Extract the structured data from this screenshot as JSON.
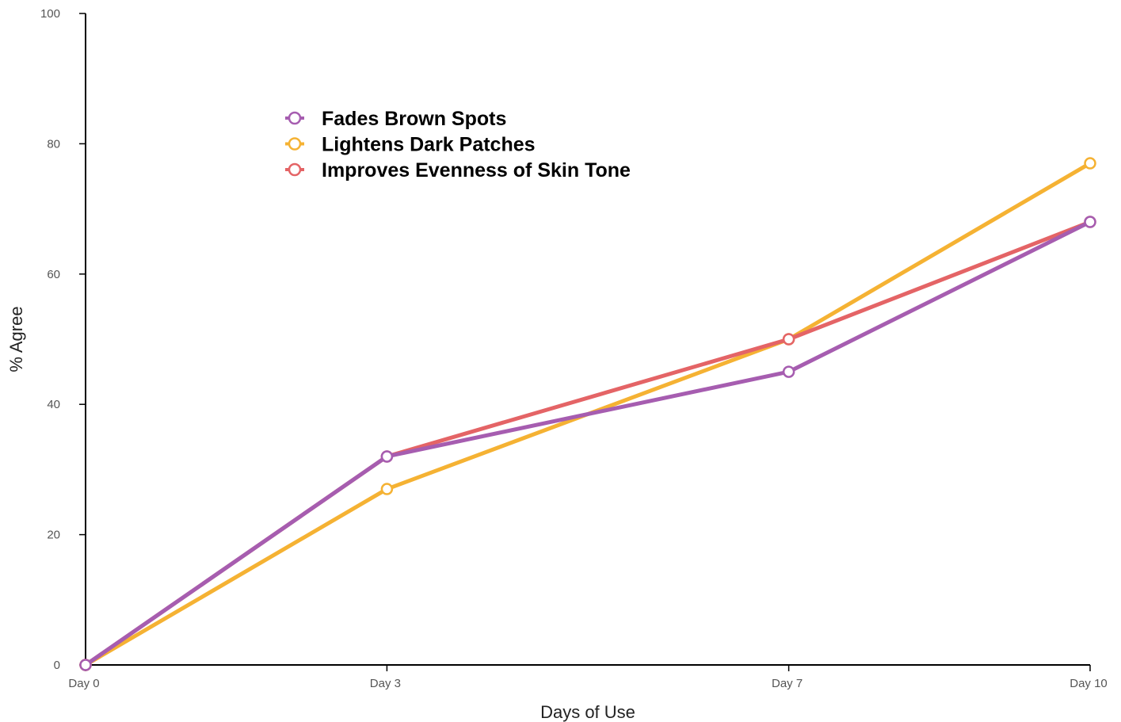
{
  "chart_data": {
    "type": "line",
    "title": "",
    "xlabel": "Days of Use",
    "ylabel": "% Agree",
    "categories": [
      "Day 0",
      "Day 3",
      "Day 7",
      "Day 10"
    ],
    "x": [
      0,
      3,
      7,
      10
    ],
    "ylim": [
      0,
      100
    ],
    "yticks": [
      "0",
      "20",
      "40",
      "60",
      "80",
      "100"
    ],
    "grid": false,
    "legend_position": "top-left",
    "series": [
      {
        "name": "Fades Brown Spots",
        "color": "#a65db0",
        "values": [
          0,
          32,
          45,
          68
        ]
      },
      {
        "name": "Lightens Dark Patches",
        "color": "#f5b233",
        "values": [
          0,
          27,
          50,
          77
        ]
      },
      {
        "name": "Improves Evenness of Skin Tone",
        "color": "#e46466",
        "values": [
          0,
          32,
          50,
          68
        ]
      }
    ],
    "draw_order": [
      1,
      2,
      0
    ]
  }
}
